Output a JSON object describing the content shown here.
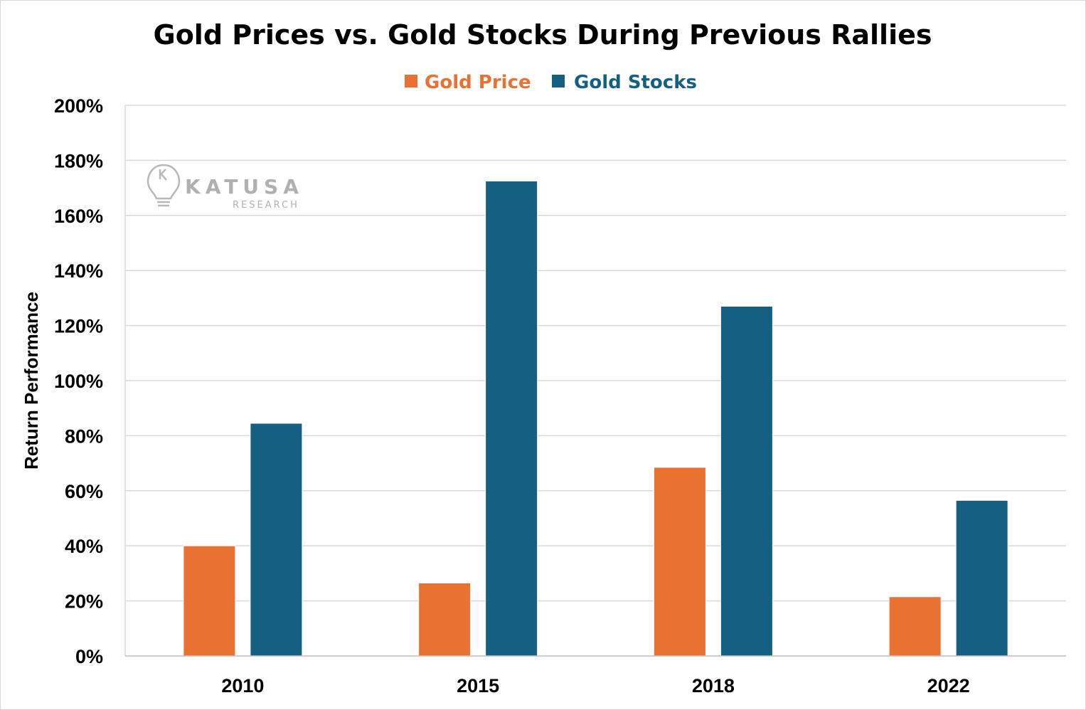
{
  "chart_data": {
    "type": "bar",
    "title": "Gold Prices vs.  Gold Stocks During Previous Rallies",
    "ylabel": "Return Performance",
    "xlabel": "",
    "categories": [
      "2010",
      "2015",
      "2018",
      "2022"
    ],
    "series": [
      {
        "name": "Gold Price",
        "color": "#e97132",
        "values": [
          40,
          26.5,
          68.5,
          21.5
        ]
      },
      {
        "name": "Gold Stocks",
        "color": "#156082",
        "values": [
          84.5,
          172.5,
          127,
          56.5
        ]
      }
    ],
    "ylim": [
      0,
      200
    ],
    "yticks": [
      "0%",
      "20%",
      "40%",
      "60%",
      "80%",
      "100%",
      "120%",
      "140%",
      "160%",
      "180%",
      "200%"
    ],
    "grid": true,
    "legend_position": "top-center"
  },
  "watermark": {
    "name": "KATUSA",
    "sub": "RESEARCH",
    "icon": "lightbulb-icon"
  }
}
